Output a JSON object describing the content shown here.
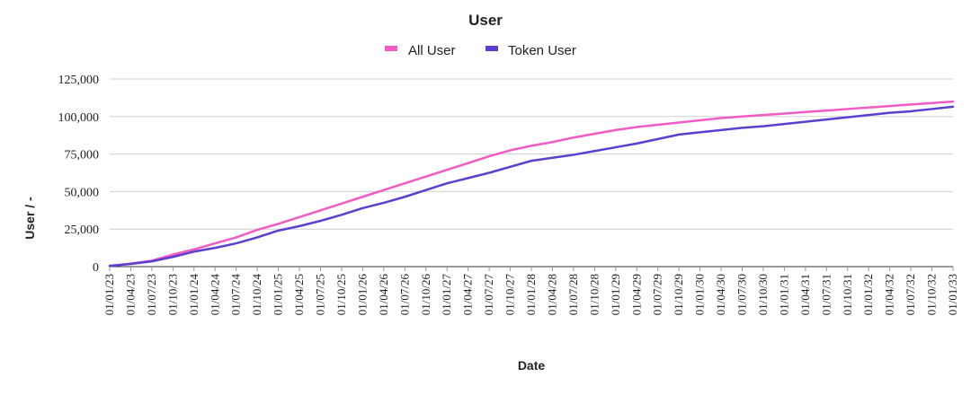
{
  "chart_data": {
    "type": "line",
    "title": "User",
    "xlabel": "Date",
    "ylabel": "User / -",
    "ylim": [
      0,
      125000
    ],
    "yticks": [
      "0",
      "25,000",
      "50,000",
      "75,000",
      "100,000",
      "125,000"
    ],
    "ytick_values": [
      0,
      25000,
      50000,
      75000,
      100000,
      125000
    ],
    "grid": "horizontal",
    "legend_position": "top",
    "categories": [
      "01/01/23",
      "01/04/23",
      "01/07/23",
      "01/10/23",
      "01/01/24",
      "01/04/24",
      "01/07/24",
      "01/10/24",
      "01/01/25",
      "01/04/25",
      "01/07/25",
      "01/10/25",
      "01/01/26",
      "01/04/26",
      "01/07/26",
      "01/10/26",
      "01/01/27",
      "01/04/27",
      "01/07/27",
      "01/10/27",
      "01/01/28",
      "01/04/28",
      "01/07/28",
      "01/10/28",
      "01/01/29",
      "01/04/29",
      "01/07/29",
      "01/10/29",
      "01/01/30",
      "01/04/30",
      "01/07/30",
      "01/10/30",
      "01/01/31",
      "01/04/31",
      "01/07/31",
      "01/10/31",
      "01/01/32",
      "01/04/32",
      "01/07/32",
      "01/10/32",
      "01/01/33"
    ],
    "series": [
      {
        "name": "All User",
        "color": "#f25ac4",
        "values": [
          500,
          2000,
          4000,
          8000,
          11500,
          15500,
          19500,
          24500,
          28500,
          33000,
          37500,
          42000,
          46500,
          51000,
          55500,
          60000,
          64500,
          69000,
          73500,
          77500,
          80500,
          83000,
          86000,
          88500,
          91000,
          93000,
          94500,
          96000,
          97500,
          99000,
          100000,
          101000,
          102000,
          103000,
          104000,
          105000,
          106000,
          107000,
          108000,
          109000,
          110000
        ]
      },
      {
        "name": "Token User",
        "color": "#5b3fd0",
        "values": [
          500,
          1800,
          3500,
          6500,
          10000,
          12500,
          15500,
          19500,
          24000,
          27000,
          30500,
          34500,
          39000,
          42500,
          46500,
          51000,
          55500,
          59000,
          62500,
          66500,
          70500,
          72500,
          74500,
          77000,
          79500,
          82000,
          85000,
          88000,
          89500,
          91000,
          92500,
          93500,
          95000,
          96500,
          98000,
          99500,
          101000,
          102500,
          103500,
          105000,
          106500
        ]
      }
    ]
  }
}
